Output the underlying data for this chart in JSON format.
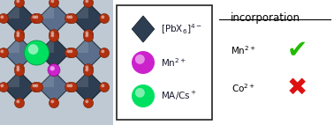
{
  "bg_color": "#ffffff",
  "struct_bg": "#b0bec5",
  "oct_dark": "#2d3e52",
  "oct_mid": "#4a6080",
  "halide_color": "#b03010",
  "halide_edge": "#7a1f00",
  "green_sphere_color": "#00e060",
  "green_sphere_edge": "#009940",
  "mn_sphere_color": "#cc22cc",
  "mn_sphere_edge": "#880088",
  "legend_box_edge": "#222222",
  "right_title": "incorporation",
  "mn_label": "Mn$^{2+}$",
  "co_label": "Co$^{2+}$",
  "legend_oct_label": "[PbX$_6$]$^{4-}$",
  "legend_mn_label": "Mn$^{2+}$",
  "legend_cs_label": "MA/Cs$^+$",
  "check_color": "#22bb00",
  "cross_color": "#dd1111",
  "font_size_title": 8.5,
  "font_size_labels": 7.5,
  "font_size_legend": 7.5
}
